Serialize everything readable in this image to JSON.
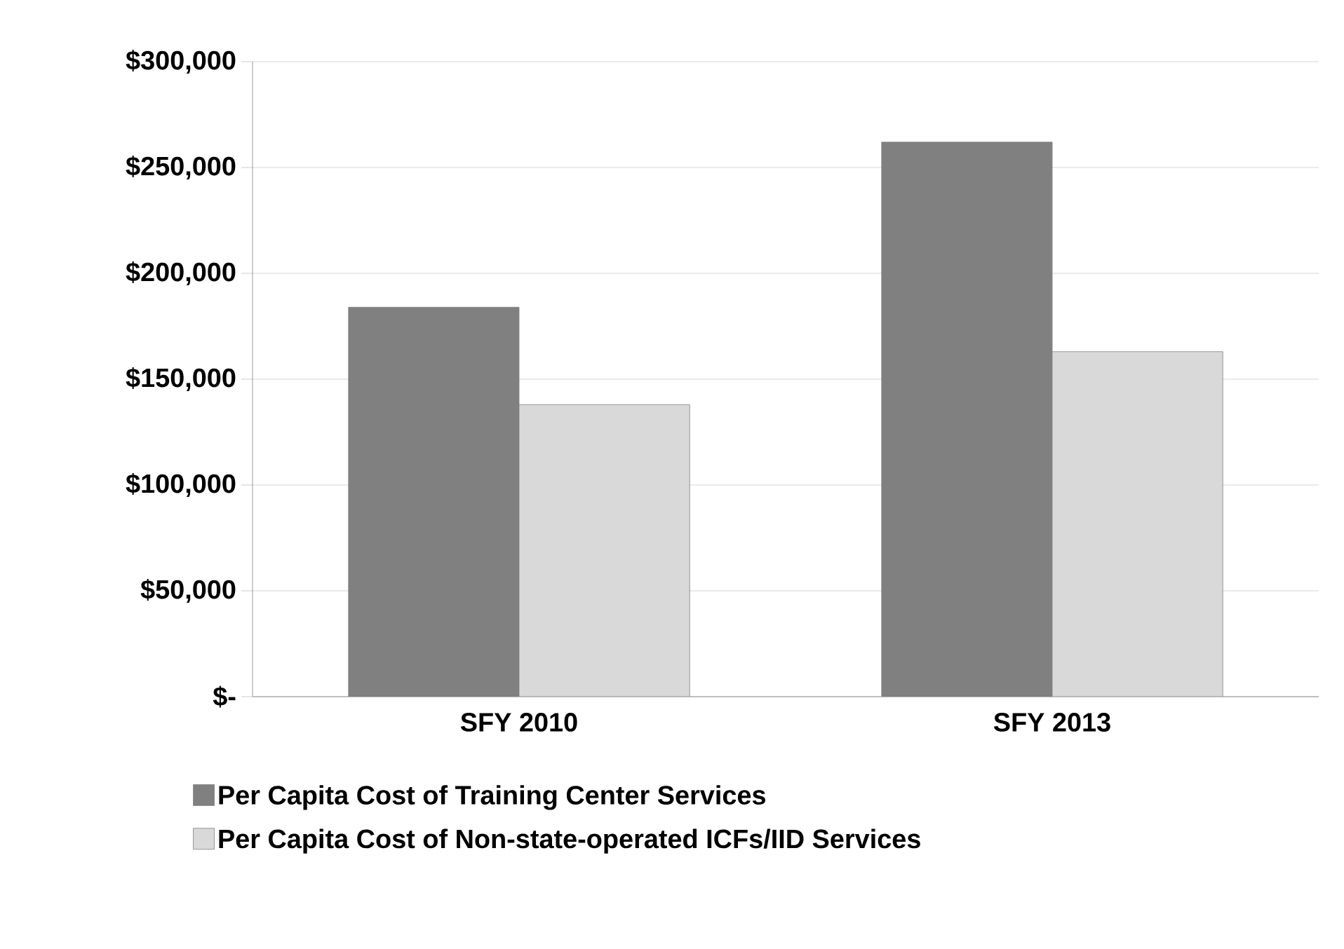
{
  "chart_data": {
    "type": "bar",
    "categories": [
      "SFY 2010",
      "SFY 2013"
    ],
    "series": [
      {
        "name": "Per Capita Cost of Training Center Services",
        "color": "#808080",
        "values": [
          184000,
          262000
        ]
      },
      {
        "name": "Per Capita Cost of Non-state-operated ICFs/IID Services",
        "color": "#d9d9d9",
        "values": [
          138000,
          163000
        ]
      }
    ],
    "ylim": [
      0,
      300000
    ],
    "yticks": [
      {
        "value": 0,
        "label": "$-"
      },
      {
        "value": 50000,
        "label": "$50,000"
      },
      {
        "value": 100000,
        "label": "$100,000"
      },
      {
        "value": 150000,
        "label": "$150,000"
      },
      {
        "value": 200000,
        "label": "$200,000"
      },
      {
        "value": 250000,
        "label": "$250,000"
      },
      {
        "value": 300000,
        "label": "$300,000"
      }
    ],
    "grid": "y",
    "legend": "bottom"
  }
}
